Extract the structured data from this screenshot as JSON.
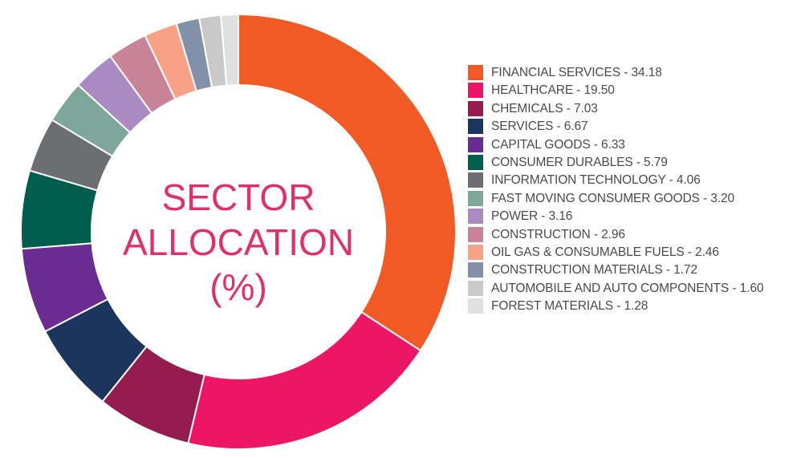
{
  "chart_data": {
    "type": "pie",
    "style": "donut",
    "title": [
      "SECTOR",
      "ALLOCATION",
      "(%)"
    ],
    "legend_position": "right",
    "slices": [
      {
        "label": "FINANCIAL SERVICES - 34.18",
        "name": "FINANCIAL SERVICES",
        "value": 34.18,
        "color": "#F15A24"
      },
      {
        "label": "HEALTHCARE - 19.50",
        "name": "HEALTHCARE",
        "value": 19.5,
        "color": "#EC1566"
      },
      {
        "label": "CHEMICALS - 7.03",
        "name": "CHEMICALS",
        "value": 7.03,
        "color": "#961B4E"
      },
      {
        "label": "SERVICES - 6.67",
        "name": "SERVICES",
        "value": 6.67,
        "color": "#1C355E"
      },
      {
        "label": "CAPITAL GOODS - 6.33",
        "name": "CAPITAL GOODS",
        "value": 6.33,
        "color": "#6B2C91"
      },
      {
        "label": "CONSUMER DURABLES - 5.79",
        "name": "CONSUMER DURABLES",
        "value": 5.79,
        "color": "#005E4E"
      },
      {
        "label": "INFORMATION TECHNOLOGY - 4.06",
        "name": "INFORMATION TECHNOLOGY",
        "value": 4.06,
        "color": "#6D6E71"
      },
      {
        "label": "FAST MOVING CONSUMER GOODS - 3.20",
        "name": "FAST MOVING CONSUMER GOODS",
        "value": 3.2,
        "color": "#7FA69B"
      },
      {
        "label": "POWER - 3.16",
        "name": "POWER",
        "value": 3.16,
        "color": "#A98BC2"
      },
      {
        "label": "CONSTRUCTION - 2.96",
        "name": "CONSTRUCTION",
        "value": 2.96,
        "color": "#C88399"
      },
      {
        "label": "OIL GAS & CONSUMABLE FUELS - 2.46",
        "name": "OIL GAS & CONSUMABLE FUELS",
        "value": 2.46,
        "color": "#F7A287"
      },
      {
        "label": "CONSTRUCTION MATERIALS - 1.72",
        "name": "CONSTRUCTION MATERIALS",
        "value": 1.72,
        "color": "#8290A8"
      },
      {
        "label": "AUTOMOBILE AND AUTO COMPONENTS - 1.60",
        "name": "AUTOMOBILE AND AUTO COMPONENTS",
        "value": 1.6,
        "color": "#C9C9C9"
      },
      {
        "label": "FOREST MATERIALS - 1.28",
        "name": "FOREST MATERIALS",
        "value": 1.28,
        "color": "#E0E0E0"
      }
    ]
  }
}
